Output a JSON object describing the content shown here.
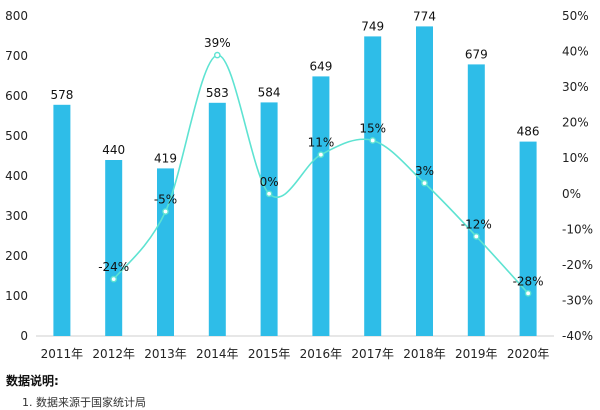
{
  "chart_data": {
    "type": "bar",
    "categories": [
      "2011年",
      "2012年",
      "2013年",
      "2014年",
      "2015年",
      "2016年",
      "2017年",
      "2018年",
      "2019年",
      "2020年"
    ],
    "series": [
      {
        "type": "bar",
        "values": [
          578,
          440,
          419,
          583,
          584,
          649,
          749,
          774,
          679,
          486
        ],
        "color": "#2ebde8",
        "axis": "left"
      },
      {
        "type": "line",
        "values": [
          null,
          -24,
          -5,
          39,
          0,
          11,
          15,
          3,
          -12,
          -28
        ],
        "labels": [
          "",
          "-24%",
          "-5%",
          "39%",
          "0%",
          "11%",
          "15%",
          "3%",
          "-12%",
          "-28%"
        ],
        "color": "#5ee3d2",
        "axis": "right"
      }
    ],
    "y_left": {
      "min": 0,
      "max": 800,
      "ticks": [
        0,
        100,
        200,
        300,
        400,
        500,
        600,
        700,
        800
      ]
    },
    "y_right": {
      "min": -40,
      "max": 50,
      "ticks": [
        "-40%",
        "-30%",
        "-20%",
        "-10%",
        "0%",
        "10%",
        "20%",
        "30%",
        "40%",
        "50%"
      ]
    },
    "grid": false,
    "legend": "none"
  },
  "footnote": {
    "title": "数据说明:",
    "text": "1. 数据来源于国家统计局"
  }
}
